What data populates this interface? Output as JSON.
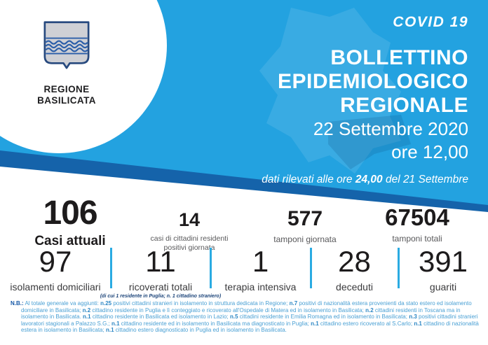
{
  "brand": {
    "region_line1": "REGIONE",
    "region_line2": "BASILICATA"
  },
  "header": {
    "covid_label": "COVID 19",
    "title_lines": [
      "BOLLETTINO",
      "EPIDEMIOLOGICO",
      "REGIONALE"
    ],
    "date": "22 Settembre 2020",
    "time": "ore 12,00",
    "note_prefix": "dati rilevati alle ore ",
    "note_bold": "24,00",
    "note_suffix": " del 21 Settembre"
  },
  "colors": {
    "header_blue": "#23a2e0",
    "stripe_navy": "#1563aa",
    "divider_blue": "#2aabe2",
    "footnote_blue": "#4aa0d4",
    "footnote_bold_blue": "#2b86c4"
  },
  "stats_row1": [
    {
      "value": "106",
      "label": "Casi attuali"
    },
    {
      "value": "14",
      "label": "casi di cittadini residenti positivi giornata"
    },
    {
      "value": "577",
      "label": "tamponi giornata"
    },
    {
      "value": "67504",
      "label": "tamponi totali"
    }
  ],
  "stats_row2": [
    {
      "value": "97",
      "label": "isolamenti domiciliari"
    },
    {
      "value": "11",
      "label": "ricoverati totali",
      "sublabel": "(di cui 1 residente in Puglia; n. 1 cittadino straniero)"
    },
    {
      "value": "1",
      "label": "terapia intensiva"
    },
    {
      "value": "28",
      "label": "deceduti"
    },
    {
      "value": "391",
      "label": "guariti"
    }
  ],
  "footnote": {
    "label": "N.B.:",
    "segments": [
      {
        "t": " Al totale generale va aggiunti: ",
        "b": false
      },
      {
        "t": "n.25",
        "b": true
      },
      {
        "t": " positivi cittadini stranieri in isolamento in struttura dedicata in Regione; ",
        "b": false
      },
      {
        "t": "n.7",
        "b": true
      },
      {
        "t": " positivi di nazionalità estera provenienti da stato estero ed isolamento domiciliare in Basilicata; ",
        "b": false
      },
      {
        "t": "n.2",
        "b": true
      },
      {
        "t": " cittadino residente in Puglia e lì conteggiato e ricoverato all'Ospedale di Matera ed in isolamento in Basilicata; ",
        "b": false
      },
      {
        "t": "n.2",
        "b": true
      },
      {
        "t": " cittadini residenti in Toscana ma in isolamento in Basilicata. ",
        "b": false
      },
      {
        "t": "n.1",
        "b": true
      },
      {
        "t": " cittadino residente in Basilicata ed isolamento in Lazio; ",
        "b": false
      },
      {
        "t": "n.5",
        "b": true
      },
      {
        "t": " cittadini residente in Emilia Romagna ed in isolamento in Basilicata; ",
        "b": false
      },
      {
        "t": "n.3",
        "b": true
      },
      {
        "t": " positivi cittadini stranieri lavoratori stagionali a Palazzo S.G.; ",
        "b": false
      },
      {
        "t": "n.1",
        "b": true
      },
      {
        "t": " cittadino residente ed in isolamento in Basilicata ma diagnosticato in Puglia; ",
        "b": false
      },
      {
        "t": "n.1",
        "b": true
      },
      {
        "t": " cittadino estero ricoverato al S.Carlo; ",
        "b": false
      },
      {
        "t": "n.1",
        "b": true
      },
      {
        "t": " cittadino di nazionalità estera in isolamento in Basilicata; ",
        "b": false
      },
      {
        "t": "n.1",
        "b": true
      },
      {
        "t": " cittadino estero diagnosticato in Puglia ed in isolamento in Basilicata.",
        "b": false
      }
    ]
  }
}
